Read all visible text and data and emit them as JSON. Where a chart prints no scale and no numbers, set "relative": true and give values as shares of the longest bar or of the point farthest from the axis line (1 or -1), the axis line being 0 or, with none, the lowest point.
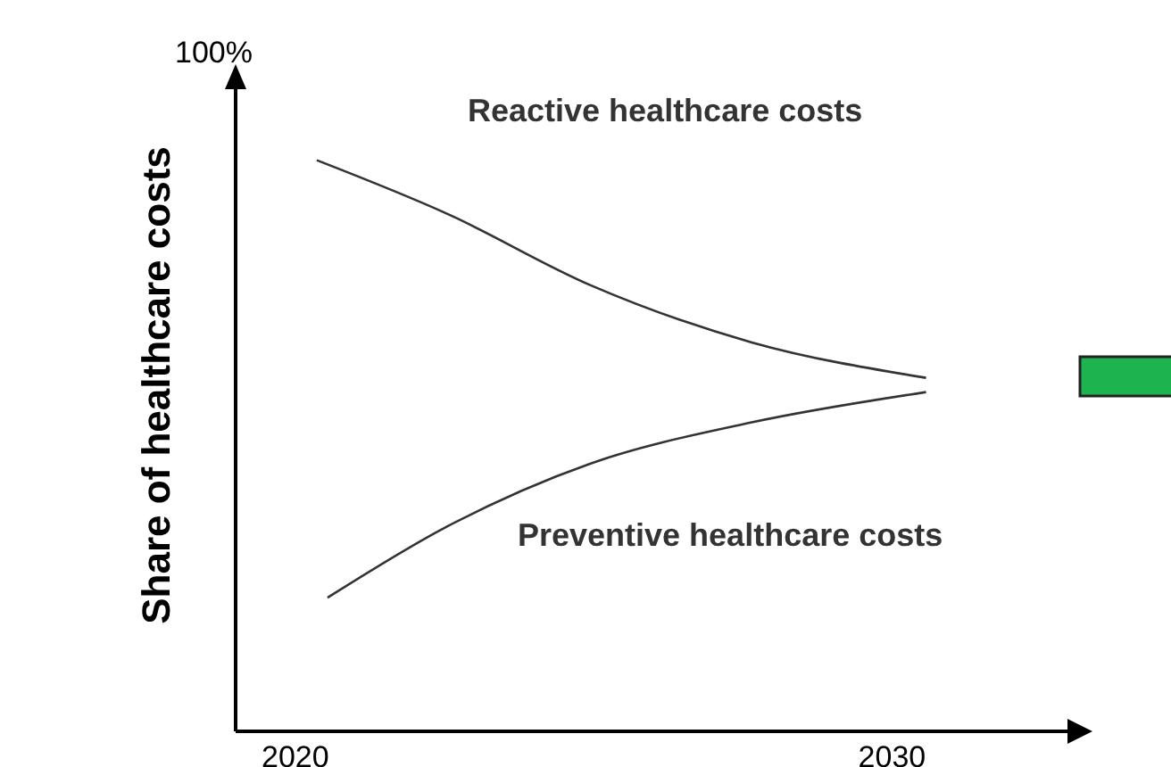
{
  "chart_data": {
    "type": "line",
    "ylabel": "Share of healthcare costs",
    "relative": true,
    "xlim": [
      2019,
      2033
    ],
    "xticks": [
      2020,
      2030
    ],
    "grid": false,
    "legend": false,
    "marker": "none",
    "line_style": "solid",
    "annotations": [
      "100%"
    ],
    "series": [
      {
        "name": "Reactive healthcare costs",
        "color": "#333333",
        "x": [
          2020.36,
          2022.55,
          2024.95,
          2027.65,
          2030.57
        ],
        "values": [
          1,
          0.906,
          0.781,
          0.681,
          0.619
        ]
      },
      {
        "name": "Preventive healthcare costs",
        "color": "#333333",
        "x": [
          2020.54,
          2022.55,
          2024.95,
          2027.65,
          2030.57
        ],
        "values": [
          0.234,
          0.359,
          0.469,
          0.541,
          0.594
        ]
      }
    ]
  }
}
